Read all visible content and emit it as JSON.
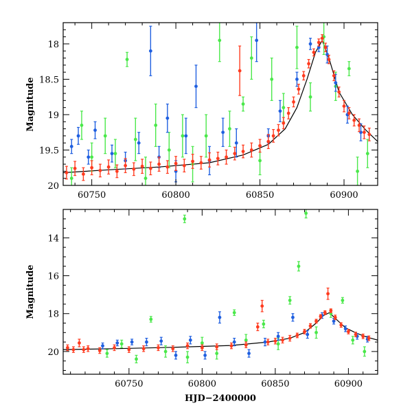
{
  "chart_data": [
    {
      "type": "scatter",
      "panel": "top",
      "title": "",
      "xlabel": "",
      "ylabel": "Magnitude",
      "xlim": [
        60733,
        60920
      ],
      "ylim": [
        20.0,
        17.7
      ],
      "y_inverted": true,
      "xticks": [
        60750,
        60800,
        60850,
        60900
      ],
      "xtick_labels": [
        "60750",
        "60800",
        "60850",
        "60900"
      ],
      "yticks": [
        18,
        18.5,
        19,
        19.5,
        20
      ],
      "ytick_labels": [
        "18",
        "18.5",
        "19",
        "19.5",
        "20"
      ],
      "grid": false,
      "legend": "none",
      "model_curve": {
        "color": "#000000",
        "x": [
          60733,
          60760,
          60790,
          60820,
          60840,
          60855,
          60865,
          60872,
          60878,
          60883,
          60887,
          60891,
          60897,
          60905,
          60913,
          60920
        ],
        "y": [
          19.82,
          19.78,
          19.74,
          19.68,
          19.57,
          19.42,
          19.2,
          18.9,
          18.5,
          18.12,
          17.95,
          18.2,
          18.68,
          19.0,
          19.22,
          19.38
        ]
      },
      "series": [
        {
          "color": "#ff3b1f",
          "points": [
            [
              60735,
              19.82,
              0.09
            ],
            [
              60740,
              19.76,
              0.1
            ],
            [
              60745,
              19.84,
              0.09
            ],
            [
              60750,
              19.75,
              0.1
            ],
            [
              60755,
              19.79,
              0.09
            ],
            [
              60760,
              19.74,
              0.1
            ],
            [
              60765,
              19.8,
              0.09
            ],
            [
              60770,
              19.72,
              0.1
            ],
            [
              60775,
              19.77,
              0.09
            ],
            [
              60780,
              19.73,
              0.1
            ],
            [
              60785,
              19.76,
              0.09
            ],
            [
              60790,
              19.7,
              0.1
            ],
            [
              60795,
              19.74,
              0.09
            ],
            [
              60800,
              19.69,
              0.1
            ],
            [
              60805,
              19.72,
              0.09
            ],
            [
              60810,
              19.66,
              0.1
            ],
            [
              60815,
              19.68,
              0.09
            ],
            [
              60820,
              19.64,
              0.1
            ],
            [
              60825,
              19.62,
              0.09
            ],
            [
              60830,
              19.6,
              0.1
            ],
            [
              60835,
              19.55,
              0.09
            ],
            [
              60838,
              18.38,
              0.35
            ],
            [
              60840,
              19.52,
              0.09
            ],
            [
              60845,
              19.5,
              0.1
            ],
            [
              60850,
              19.44,
              0.09
            ],
            [
              60855,
              19.38,
              0.1
            ],
            [
              60858,
              19.3,
              0.09
            ],
            [
              60861,
              19.22,
              0.08
            ],
            [
              60864,
              19.12,
              0.08
            ],
            [
              60867,
              18.98,
              0.08
            ],
            [
              60870,
              18.82,
              0.07
            ],
            [
              60873,
              18.64,
              0.07
            ],
            [
              60876,
              18.45,
              0.06
            ],
            [
              60879,
              18.28,
              0.06
            ],
            [
              60882,
              18.12,
              0.05
            ],
            [
              60885,
              17.98,
              0.05
            ],
            [
              60887,
              17.92,
              0.05
            ],
            [
              60889,
              18.05,
              0.06
            ],
            [
              60891,
              18.22,
              0.06
            ],
            [
              60894,
              18.45,
              0.07
            ],
            [
              60897,
              18.68,
              0.07
            ],
            [
              60900,
              18.88,
              0.08
            ],
            [
              60903,
              18.98,
              0.08
            ],
            [
              60906,
              19.08,
              0.08
            ],
            [
              60909,
              19.15,
              0.09
            ],
            [
              60912,
              19.25,
              0.09
            ],
            [
              60915,
              19.28,
              0.09
            ]
          ]
        },
        {
          "color": "#1f5fe0",
          "points": [
            [
              60738,
              19.45,
              0.1
            ],
            [
              60742,
              19.3,
              0.12
            ],
            [
              60748,
              19.6,
              0.1
            ],
            [
              60752,
              19.22,
              0.12
            ],
            [
              60762,
              19.55,
              0.12
            ],
            [
              60770,
              19.65,
              0.12
            ],
            [
              60778,
              19.4,
              0.15
            ],
            [
              60785,
              18.1,
              0.35
            ],
            [
              60790,
              19.6,
              0.15
            ],
            [
              60795,
              19.05,
              0.2
            ],
            [
              60800,
              19.8,
              0.15
            ],
            [
              60806,
              19.3,
              0.25
            ],
            [
              60812,
              18.6,
              0.3
            ],
            [
              60820,
              19.65,
              0.2
            ],
            [
              60828,
              19.25,
              0.2
            ],
            [
              60836,
              19.4,
              0.2
            ],
            [
              60848,
              17.95,
              0.3
            ],
            [
              60855,
              19.3,
              0.1
            ],
            [
              60862,
              18.95,
              0.15
            ],
            [
              60872,
              18.5,
              0.1
            ],
            [
              60880,
              18.0,
              0.08
            ],
            [
              60885,
              18.05,
              0.06
            ],
            [
              60890,
              18.15,
              0.12
            ],
            [
              60895,
              18.55,
              0.12
            ],
            [
              60902,
              19.0,
              0.12
            ],
            [
              60910,
              19.25,
              0.12
            ]
          ]
        },
        {
          "color": "#4ae84a",
          "points": [
            [
              60738,
              19.9,
              0.15
            ],
            [
              60744,
              19.15,
              0.2
            ],
            [
              60750,
              19.6,
              0.2
            ],
            [
              60758,
              19.3,
              0.25
            ],
            [
              60764,
              19.55,
              0.2
            ],
            [
              60771,
              18.22,
              0.1
            ],
            [
              60776,
              19.35,
              0.3
            ],
            [
              60782,
              19.9,
              0.3
            ],
            [
              60788,
              19.15,
              0.3
            ],
            [
              60796,
              19.5,
              0.25
            ],
            [
              60804,
              19.3,
              0.3
            ],
            [
              60810,
              19.7,
              0.25
            ],
            [
              60818,
              19.3,
              0.3
            ],
            [
              60826,
              17.95,
              0.3
            ],
            [
              60832,
              19.2,
              0.25
            ],
            [
              60840,
              18.85,
              0.1
            ],
            [
              60845,
              18.2,
              0.3
            ],
            [
              60850,
              19.65,
              0.2
            ],
            [
              60857,
              18.5,
              0.3
            ],
            [
              60864,
              18.9,
              0.2
            ],
            [
              60872,
              18.05,
              0.3
            ],
            [
              60880,
              18.75,
              0.2
            ],
            [
              60888,
              17.9,
              0.25
            ],
            [
              60895,
              18.6,
              0.2
            ],
            [
              60903,
              18.35,
              0.1
            ],
            [
              60908,
              19.8,
              0.2
            ],
            [
              60914,
              19.55,
              0.2
            ]
          ]
        }
      ]
    },
    {
      "type": "scatter",
      "panel": "bottom",
      "title": "",
      "xlabel": "HJD−2400000",
      "ylabel": "Magnitude",
      "xlim": [
        60705,
        60920
      ],
      "ylim": [
        21.2,
        12.5
      ],
      "y_inverted": true,
      "xticks": [
        60750,
        60800,
        60850,
        60900
      ],
      "xtick_labels": [
        "60750",
        "60800",
        "60850",
        "60900"
      ],
      "yticks": [
        14,
        16,
        18,
        20
      ],
      "ytick_labels": [
        "14",
        "16",
        "18",
        "20"
      ],
      "grid": false,
      "legend": "none",
      "model_curve": {
        "color": "#000000",
        "x": [
          60705,
          60740,
          60780,
          60820,
          60845,
          60860,
          60870,
          60878,
          60883,
          60887,
          60891,
          60898,
          60906,
          60913,
          60920
        ],
        "y": [
          19.9,
          19.85,
          19.78,
          19.68,
          19.5,
          19.3,
          19.0,
          18.5,
          18.1,
          17.95,
          18.25,
          18.75,
          19.05,
          19.25,
          19.4
        ]
      },
      "series": [
        {
          "color": "#ff3b1f",
          "points": [
            [
              60708,
              19.8,
              0.15
            ],
            [
              60712,
              19.9,
              0.15
            ],
            [
              60716,
              19.55,
              0.2
            ],
            [
              60719,
              19.9,
              0.15
            ],
            [
              60722,
              19.85,
              0.15
            ],
            [
              60730,
              19.95,
              0.15
            ],
            [
              60740,
              19.8,
              0.15
            ],
            [
              60750,
              19.9,
              0.15
            ],
            [
              60760,
              19.85,
              0.15
            ],
            [
              60770,
              19.8,
              0.15
            ],
            [
              60780,
              19.85,
              0.15
            ],
            [
              60790,
              19.7,
              0.15
            ],
            [
              60800,
              19.8,
              0.15
            ],
            [
              60810,
              19.75,
              0.15
            ],
            [
              60820,
              19.7,
              0.15
            ],
            [
              60830,
              19.65,
              0.15
            ],
            [
              60838,
              18.7,
              0.2
            ],
            [
              60841,
              17.6,
              0.3
            ],
            [
              60845,
              19.5,
              0.15
            ],
            [
              60850,
              19.45,
              0.15
            ],
            [
              60855,
              19.4,
              0.15
            ],
            [
              60860,
              19.3,
              0.15
            ],
            [
              60865,
              19.15,
              0.12
            ],
            [
              60870,
              18.95,
              0.12
            ],
            [
              60874,
              18.65,
              0.12
            ],
            [
              60878,
              18.4,
              0.1
            ],
            [
              60881,
              18.15,
              0.1
            ],
            [
              60884,
              17.95,
              0.1
            ],
            [
              60886,
              16.95,
              0.3
            ],
            [
              60888,
              17.85,
              0.1
            ],
            [
              60891,
              18.2,
              0.12
            ],
            [
              60895,
              18.6,
              0.12
            ],
            [
              60900,
              18.95,
              0.12
            ],
            [
              60905,
              19.1,
              0.12
            ],
            [
              60910,
              19.2,
              0.12
            ],
            [
              60914,
              19.3,
              0.12
            ]
          ]
        },
        {
          "color": "#1f5fe0",
          "points": [
            [
              60732,
              19.7,
              0.15
            ],
            [
              60742,
              19.55,
              0.15
            ],
            [
              60752,
              19.5,
              0.15
            ],
            [
              60762,
              19.5,
              0.2
            ],
            [
              60772,
              19.45,
              0.2
            ],
            [
              60782,
              20.2,
              0.2
            ],
            [
              60792,
              19.4,
              0.2
            ],
            [
              60802,
              20.2,
              0.2
            ],
            [
              60812,
              18.2,
              0.3
            ],
            [
              60822,
              19.5,
              0.2
            ],
            [
              60832,
              20.1,
              0.2
            ],
            [
              60843,
              19.5,
              0.2
            ],
            [
              60852,
              19.2,
              0.2
            ],
            [
              60862,
              18.2,
              0.2
            ],
            [
              60872,
              19.1,
              0.2
            ],
            [
              60882,
              18.1,
              0.15
            ],
            [
              60890,
              18.4,
              0.15
            ],
            [
              60898,
              18.8,
              0.15
            ],
            [
              60906,
              19.2,
              0.15
            ],
            [
              60913,
              19.35,
              0.15
            ]
          ]
        },
        {
          "color": "#4ae84a",
          "points": [
            [
              60735,
              20.1,
              0.2
            ],
            [
              60745,
              19.6,
              0.2
            ],
            [
              60755,
              20.4,
              0.2
            ],
            [
              60765,
              18.3,
              0.15
            ],
            [
              60775,
              20.0,
              0.3
            ],
            [
              60788,
              13.0,
              0.2
            ],
            [
              60790,
              20.3,
              0.3
            ],
            [
              60800,
              19.55,
              0.3
            ],
            [
              60810,
              20.1,
              0.3
            ],
            [
              60822,
              17.95,
              0.15
            ],
            [
              60830,
              19.4,
              0.3
            ],
            [
              60842,
              18.55,
              0.2
            ],
            [
              60852,
              19.6,
              0.3
            ],
            [
              60860,
              17.3,
              0.2
            ],
            [
              60866,
              15.5,
              0.25
            ],
            [
              60871,
              12.7,
              0.25
            ],
            [
              60878,
              19.0,
              0.3
            ],
            [
              60888,
              18.0,
              0.2
            ],
            [
              60896,
              17.3,
              0.15
            ],
            [
              60903,
              19.4,
              0.2
            ],
            [
              60911,
              20.0,
              0.25
            ]
          ]
        }
      ]
    }
  ]
}
